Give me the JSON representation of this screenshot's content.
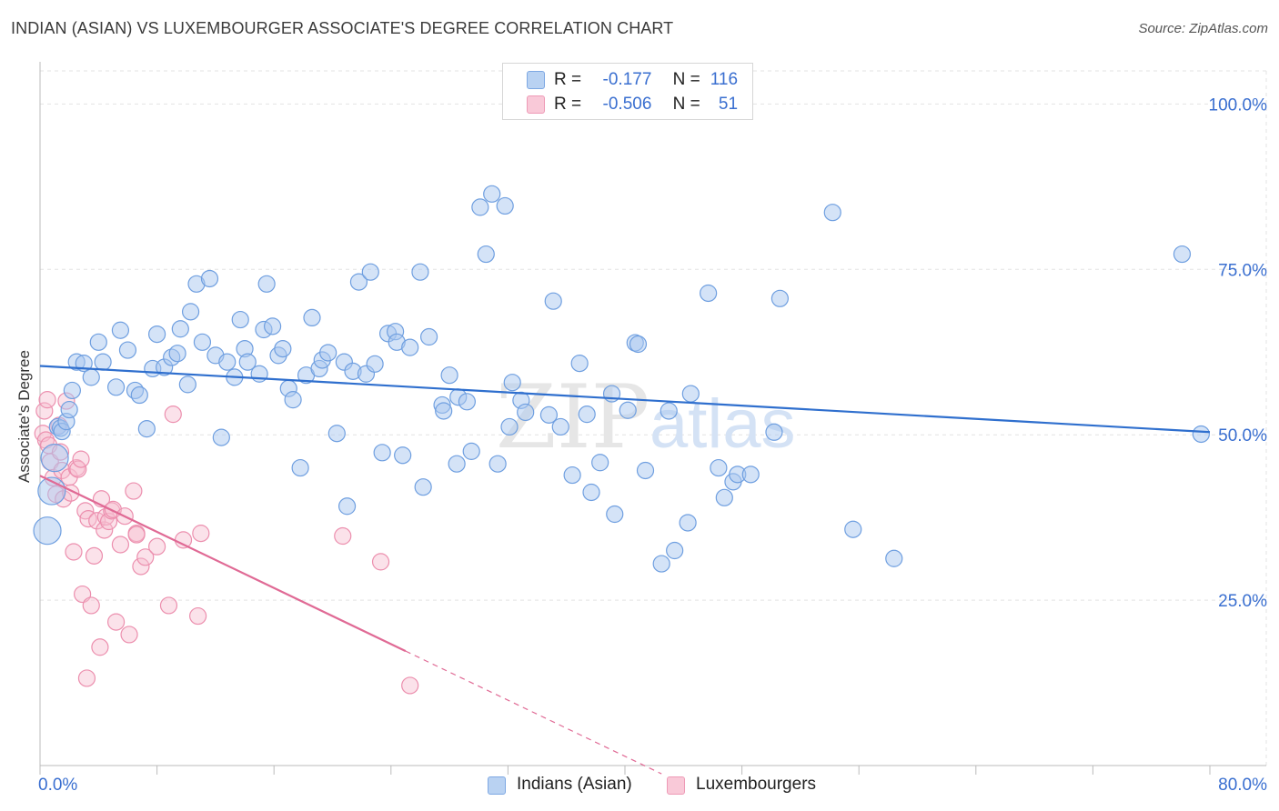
{
  "title": "INDIAN (ASIAN) VS LUXEMBOURGER ASSOCIATE'S DEGREE CORRELATION CHART",
  "source": "Source: ZipAtlas.com",
  "watermark": {
    "zip": "ZIP",
    "atlas": "atlas"
  },
  "legend": {
    "r_label": "R =",
    "n_label": "N =",
    "series": [
      {
        "r": "-0.177",
        "n": "116"
      },
      {
        "r": "-0.506",
        "n": "51"
      }
    ]
  },
  "colors": {
    "blue_fill": "#aac8ef",
    "blue_stroke": "#6f9fe0",
    "blue_line": "#2f6fce",
    "pink_fill": "#f6bfd0",
    "pink_stroke": "#ec8fae",
    "pink_line": "#e06a95",
    "axis_text": "#3a6fd0",
    "grid": "#e3e3e3"
  },
  "chart_data": {
    "type": "scatter",
    "title": "INDIAN (ASIAN) VS LUXEMBOURGER ASSOCIATE'S DEGREE CORRELATION CHART",
    "xlabel": "",
    "ylabel": "Associate's Degree",
    "xlim": [
      0,
      80
    ],
    "ylim": [
      0,
      105
    ],
    "x_tick_labels": [
      "0.0%",
      "80.0%"
    ],
    "y_ticks": [
      25,
      50,
      75,
      100
    ],
    "y_tick_labels": [
      "25.0%",
      "50.0%",
      "75.0%",
      "100.0%"
    ],
    "legend_position": "bottom",
    "series": [
      {
        "name": "Indians (Asian)",
        "trend": {
          "x0": 0,
          "y0": 60.4,
          "x1": 80,
          "y1": 50.4
        },
        "points": [
          [
            0.5,
            35.5
          ],
          [
            0.8,
            41.5
          ],
          [
            1.0,
            46.5
          ],
          [
            1.2,
            51.2
          ],
          [
            1.4,
            51.0
          ],
          [
            1.5,
            50.5
          ],
          [
            1.8,
            52.0
          ],
          [
            2.0,
            53.8
          ],
          [
            2.2,
            56.7
          ],
          [
            2.5,
            61.0
          ],
          [
            3.0,
            60.8
          ],
          [
            3.5,
            58.7
          ],
          [
            4.0,
            64.0
          ],
          [
            4.3,
            61.0
          ],
          [
            5.2,
            57.2
          ],
          [
            5.5,
            65.8
          ],
          [
            6.0,
            62.8
          ],
          [
            6.5,
            56.7
          ],
          [
            6.8,
            56.0
          ],
          [
            7.3,
            50.9
          ],
          [
            7.7,
            60.0
          ],
          [
            8.0,
            65.2
          ],
          [
            8.5,
            60.2
          ],
          [
            9.0,
            61.7
          ],
          [
            9.4,
            62.3
          ],
          [
            9.6,
            66.0
          ],
          [
            10.1,
            57.6
          ],
          [
            10.3,
            68.6
          ],
          [
            10.7,
            72.8
          ],
          [
            11.1,
            64.0
          ],
          [
            11.6,
            73.6
          ],
          [
            12.0,
            62.0
          ],
          [
            12.4,
            49.6
          ],
          [
            12.8,
            61.0
          ],
          [
            13.3,
            58.7
          ],
          [
            13.7,
            67.4
          ],
          [
            14.0,
            63.0
          ],
          [
            14.2,
            61.0
          ],
          [
            15.0,
            59.2
          ],
          [
            15.3,
            65.9
          ],
          [
            15.5,
            72.8
          ],
          [
            15.9,
            66.4
          ],
          [
            16.3,
            62.0
          ],
          [
            16.6,
            63.0
          ],
          [
            17.0,
            57.0
          ],
          [
            17.3,
            55.3
          ],
          [
            17.8,
            45.0
          ],
          [
            18.2,
            59.0
          ],
          [
            18.6,
            67.7
          ],
          [
            19.1,
            60.0
          ],
          [
            19.3,
            61.3
          ],
          [
            19.7,
            62.4
          ],
          [
            20.3,
            50.2
          ],
          [
            20.8,
            61.0
          ],
          [
            21.0,
            39.2
          ],
          [
            21.4,
            59.6
          ],
          [
            21.8,
            73.1
          ],
          [
            22.3,
            59.2
          ],
          [
            22.6,
            74.6
          ],
          [
            22.9,
            60.7
          ],
          [
            23.4,
            47.3
          ],
          [
            23.8,
            65.3
          ],
          [
            24.3,
            65.6
          ],
          [
            24.4,
            64.0
          ],
          [
            24.8,
            46.9
          ],
          [
            25.3,
            63.2
          ],
          [
            26.0,
            74.6
          ],
          [
            26.2,
            42.1
          ],
          [
            26.6,
            64.8
          ],
          [
            27.5,
            54.5
          ],
          [
            27.6,
            53.6
          ],
          [
            28.0,
            59.0
          ],
          [
            28.5,
            45.6
          ],
          [
            28.6,
            55.7
          ],
          [
            29.2,
            55.0
          ],
          [
            29.5,
            47.5
          ],
          [
            30.1,
            84.4
          ],
          [
            30.5,
            77.3
          ],
          [
            30.9,
            86.4
          ],
          [
            31.3,
            45.6
          ],
          [
            31.8,
            84.6
          ],
          [
            32.1,
            51.2
          ],
          [
            32.3,
            57.9
          ],
          [
            32.9,
            55.2
          ],
          [
            33.2,
            53.4
          ],
          [
            34.8,
            53.0
          ],
          [
            35.1,
            70.2
          ],
          [
            35.6,
            51.2
          ],
          [
            36.4,
            43.9
          ],
          [
            36.9,
            60.8
          ],
          [
            37.4,
            53.1
          ],
          [
            37.7,
            41.3
          ],
          [
            38.3,
            45.8
          ],
          [
            39.1,
            56.2
          ],
          [
            39.3,
            38.0
          ],
          [
            40.2,
            53.7
          ],
          [
            40.7,
            63.9
          ],
          [
            40.9,
            63.7
          ],
          [
            41.4,
            44.6
          ],
          [
            42.5,
            30.5
          ],
          [
            43.0,
            53.6
          ],
          [
            43.4,
            32.5
          ],
          [
            44.3,
            36.7
          ],
          [
            44.5,
            56.2
          ],
          [
            45.7,
            71.4
          ],
          [
            46.4,
            45.0
          ],
          [
            46.8,
            40.5
          ],
          [
            47.4,
            42.9
          ],
          [
            47.7,
            44.0
          ],
          [
            48.6,
            44.0
          ],
          [
            50.2,
            50.4
          ],
          [
            50.6,
            70.6
          ],
          [
            54.2,
            83.6
          ],
          [
            55.6,
            35.7
          ],
          [
            58.4,
            31.3
          ],
          [
            78.1,
            77.3
          ],
          [
            79.4,
            50.1
          ]
        ],
        "big_points": [
          [
            0.5,
            35.5
          ],
          [
            0.8,
            41.5
          ],
          [
            1.0,
            46.5
          ]
        ]
      },
      {
        "name": "Luxembourgers",
        "trend": {
          "x0": 0,
          "y0": 43.8,
          "x1": 25,
          "y1": 17.3,
          "dash_to_x": 42.5
        },
        "points": [
          [
            0.2,
            50.2
          ],
          [
            0.3,
            53.6
          ],
          [
            0.4,
            49.2
          ],
          [
            0.6,
            48.4
          ],
          [
            0.5,
            55.3
          ],
          [
            0.7,
            45.9
          ],
          [
            0.9,
            43.5
          ],
          [
            1.1,
            41.0
          ],
          [
            1.3,
            51.4
          ],
          [
            1.4,
            47.4
          ],
          [
            1.5,
            44.6
          ],
          [
            1.6,
            40.3
          ],
          [
            1.8,
            55.1
          ],
          [
            2.0,
            43.6
          ],
          [
            2.1,
            41.2
          ],
          [
            2.3,
            32.3
          ],
          [
            2.5,
            45.0
          ],
          [
            2.6,
            44.8
          ],
          [
            2.8,
            46.3
          ],
          [
            2.9,
            25.9
          ],
          [
            3.1,
            38.5
          ],
          [
            3.3,
            37.3
          ],
          [
            3.5,
            24.2
          ],
          [
            3.7,
            31.7
          ],
          [
            3.9,
            37.0
          ],
          [
            4.1,
            17.9
          ],
          [
            4.2,
            40.3
          ],
          [
            4.4,
            35.6
          ],
          [
            4.5,
            37.6
          ],
          [
            4.7,
            36.9
          ],
          [
            4.9,
            38.5
          ],
          [
            5.0,
            38.7
          ],
          [
            5.2,
            21.7
          ],
          [
            5.5,
            33.4
          ],
          [
            5.8,
            37.7
          ],
          [
            6.1,
            19.8
          ],
          [
            6.4,
            41.5
          ],
          [
            6.6,
            35.1
          ],
          [
            6.9,
            30.1
          ],
          [
            7.2,
            31.5
          ],
          [
            8.0,
            33.1
          ],
          [
            8.8,
            24.2
          ],
          [
            9.1,
            53.1
          ],
          [
            9.8,
            34.1
          ],
          [
            10.8,
            22.6
          ],
          [
            11.0,
            35.1
          ],
          [
            20.7,
            34.7
          ],
          [
            23.3,
            30.8
          ],
          [
            25.3,
            12.1
          ],
          [
            3.2,
            13.2
          ],
          [
            6.6,
            34.9
          ]
        ]
      }
    ]
  },
  "bottom_legend": [
    "Indians (Asian)",
    "Luxembourgers"
  ]
}
